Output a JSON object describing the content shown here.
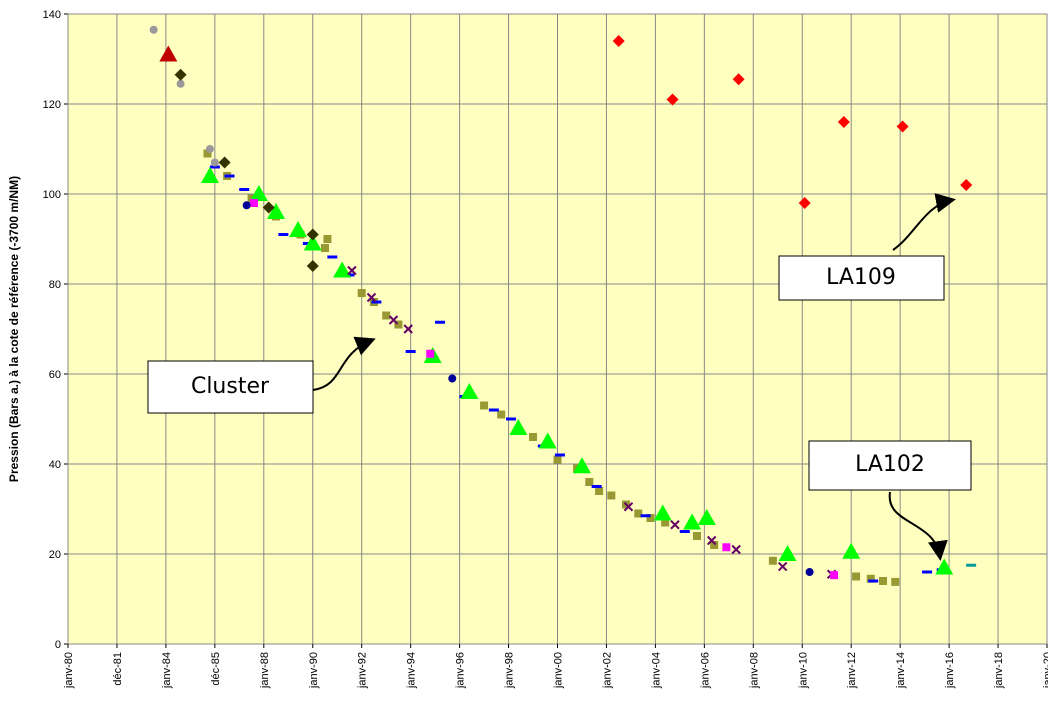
{
  "chart_data": {
    "type": "scatter",
    "y_label": "Pression (Bars a.) à la cote de référence (-3700 m/NM)",
    "xlim": [
      1980,
      2020
    ],
    "ylim": [
      0,
      140
    ],
    "yticks": [
      0,
      20,
      40,
      60,
      80,
      100,
      120,
      140
    ],
    "xticks": [
      {
        "value": 1980,
        "label": "janv-80"
      },
      {
        "value": 1982,
        "label": "déc-81"
      },
      {
        "value": 1984,
        "label": "janv-84"
      },
      {
        "value": 1986,
        "label": "déc-85"
      },
      {
        "value": 1988,
        "label": "janv-88"
      },
      {
        "value": 1990,
        "label": "janv-90"
      },
      {
        "value": 1992,
        "label": "janv-92"
      },
      {
        "value": 1994,
        "label": "janv-94"
      },
      {
        "value": 1996,
        "label": "janv-96"
      },
      {
        "value": 1998,
        "label": "janv-98"
      },
      {
        "value": 2000,
        "label": "janv-00"
      },
      {
        "value": 2002,
        "label": "janv-02"
      },
      {
        "value": 2004,
        "label": "janv-04"
      },
      {
        "value": 2006,
        "label": "janv-06"
      },
      {
        "value": 2008,
        "label": "janv-08"
      },
      {
        "value": 2010,
        "label": "janv-10"
      },
      {
        "value": 2012,
        "label": "janv-12"
      },
      {
        "value": 2014,
        "label": "janv-14"
      },
      {
        "value": 2016,
        "label": "janv-16"
      },
      {
        "value": 2018,
        "label": "janv-18"
      },
      {
        "value": 2020,
        "label": "janv-20"
      }
    ],
    "grid": true,
    "annotations": [
      "Cluster",
      "LA109",
      "LA102"
    ],
    "series": [
      {
        "color": "#999933",
        "marker": "square",
        "x": [
          1985.7,
          1986.5,
          1987.5,
          1988.5,
          1989.5,
          1990.5,
          1990.6,
          1992,
          1992.5,
          1993,
          1993.5,
          1997,
          1997.7,
          1999,
          2000,
          2000.8,
          2001.3,
          2001.7,
          2002.2,
          2002.8,
          2003.3,
          2003.8,
          2004.4,
          2005.7,
          2006.4,
          2008.8,
          2012.2,
          2012.8,
          2013.3,
          2013.8
        ],
        "values": [
          109,
          104,
          99,
          95,
          91,
          88,
          90,
          78,
          76,
          73,
          71,
          53,
          51,
          46,
          41,
          39,
          36,
          34,
          33,
          31,
          29,
          28,
          27,
          24,
          22,
          18.5,
          15,
          14.5,
          14,
          13.8
        ]
      },
      {
        "color": "#0000ff",
        "marker": "dash",
        "x": [
          1986,
          1986.6,
          1987.2,
          1988.8,
          1989.8,
          1990.8,
          1991.5,
          1992.6,
          1994,
          1995.2,
          1996.2,
          1997.4,
          1998.1,
          1999.4,
          2000.1,
          2001.6,
          2003.6,
          2005.2,
          2012.9,
          2015.1,
          2015.7
        ],
        "values": [
          106,
          104,
          101,
          91,
          89,
          86,
          82,
          76,
          65,
          71.5,
          55,
          52,
          50,
          44,
          42,
          35,
          28.5,
          25,
          14,
          16,
          16.5
        ]
      },
      {
        "color": "#00ff00",
        "marker": "triangle",
        "x": [
          1985.8,
          1987.8,
          1988.5,
          1989.4,
          1990,
          1991.2,
          1994.9,
          1996.4,
          1998.4,
          1999.6,
          2001,
          2004.3,
          2005.5,
          2006.1,
          2009.4,
          2012,
          2015.8
        ],
        "values": [
          104,
          100,
          96,
          92,
          89,
          83,
          64,
          56,
          48,
          45,
          39.5,
          29,
          27,
          28,
          20,
          20.5,
          17
        ]
      },
      {
        "color": "#ff0000",
        "marker": "diamond",
        "x": [
          2002.5,
          2004.7,
          2007.4,
          2010.1,
          2011.7,
          2014.1,
          2016.7
        ],
        "values": [
          134,
          121,
          125.5,
          98,
          116,
          115,
          102
        ]
      },
      {
        "color": "#c00000",
        "marker": "triangle",
        "x": [
          1984.1
        ],
        "values": [
          131
        ]
      },
      {
        "color": "#999999",
        "marker": "circle",
        "x": [
          1983.5,
          1984.6,
          1985.8,
          1986
        ],
        "values": [
          136.5,
          124.5,
          110,
          107
        ]
      },
      {
        "color": "#660066",
        "marker": "x",
        "x": [
          1991.6,
          1992.4,
          1993.3,
          1993.9,
          2002.9,
          2004.8,
          2006.3,
          2007.3,
          2009.2,
          2011.2
        ],
        "values": [
          83,
          77,
          72,
          70,
          30.5,
          26.5,
          23,
          21,
          17.2,
          15.5
        ]
      },
      {
        "color": "#ff00ff",
        "marker": "square",
        "x": [
          1987.6,
          1994.8,
          2006.9,
          2011.3
        ],
        "values": [
          98,
          64.5,
          21.5,
          15.3
        ]
      },
      {
        "color": "#333300",
        "marker": "diamond",
        "x": [
          1984.6,
          1986.4,
          1988.2,
          1990,
          1990
        ],
        "values": [
          126.5,
          107,
          97,
          91,
          84
        ]
      },
      {
        "color": "#000099",
        "marker": "circle",
        "x": [
          1987.3,
          1995.7,
          2010.3
        ],
        "values": [
          97.5,
          59,
          16
        ]
      },
      {
        "color": "#009999",
        "marker": "dash",
        "x": [
          2016.9
        ],
        "values": [
          17.5
        ]
      }
    ]
  }
}
